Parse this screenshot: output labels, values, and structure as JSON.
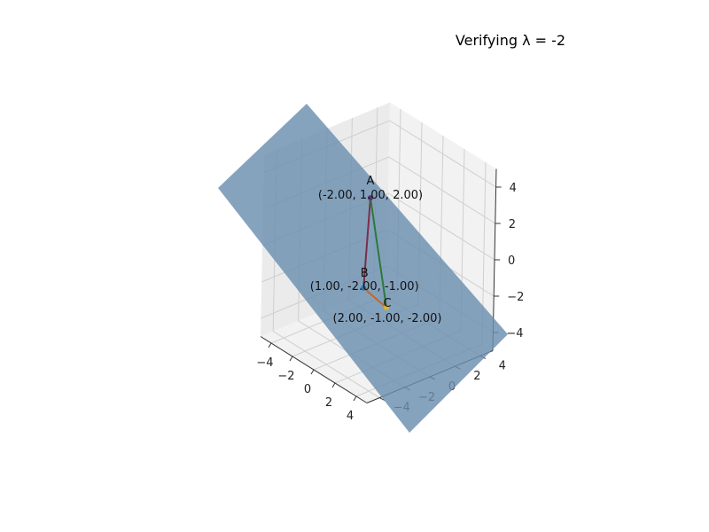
{
  "chart_data": {
    "type": "3d-surface-with-points",
    "title": "Verifying λ = -2",
    "xlim": [
      -5,
      5
    ],
    "ylim": [
      -5,
      5
    ],
    "zlim": [
      -5,
      5
    ],
    "x_ticks": [
      -4,
      -2,
      0,
      2,
      4
    ],
    "y_ticks": [
      -4,
      -2,
      0,
      2,
      4
    ],
    "z_ticks": [
      -4,
      -2,
      0,
      2,
      4
    ],
    "grid": true,
    "plane": {
      "color": "#6b8fb0",
      "opacity": 0.82
    },
    "points": [
      {
        "name": "A",
        "coords_label": "(-2.00, 1.00, 2.00)",
        "xyz": [
          -2,
          1,
          2
        ],
        "color": "#5a3270"
      },
      {
        "name": "B",
        "coords_label": "(1.00, -2.00, -1.00)",
        "xyz": [
          1,
          -2,
          -1
        ],
        "color": "#1f77b4"
      },
      {
        "name": "C",
        "coords_label": "(2.00, -1.00, -2.00)",
        "xyz": [
          2,
          -1,
          -2
        ],
        "color": "#e1b12c"
      }
    ],
    "segments": [
      {
        "from": "A",
        "to": "B",
        "color": "#7b2d4a"
      },
      {
        "from": "A",
        "to": "C",
        "color": "#2a7a3a"
      },
      {
        "from": "B",
        "to": "C",
        "color": "#c0692a"
      }
    ]
  }
}
